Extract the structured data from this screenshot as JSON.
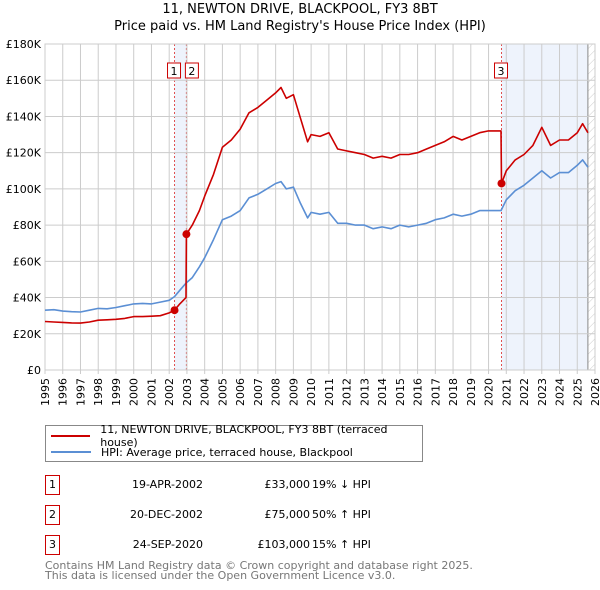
{
  "title_line1": "11, NEWTON DRIVE, BLACKPOOL, FY3 8BT",
  "title_line2": "Price paid vs. HM Land Registry's House Price Index (HPI)",
  "chart_data": {
    "type": "line",
    "title": "11, NEWTON DRIVE, BLACKPOOL, FY3 8BT — Price paid vs. HM Land Registry's House Price Index (HPI)",
    "xlabel": "",
    "ylabel": "",
    "xlim": [
      1995,
      2026
    ],
    "ylim": [
      0,
      180000
    ],
    "grid": true,
    "x_ticks": [
      "1995",
      "1996",
      "1997",
      "1998",
      "1999",
      "2000",
      "2001",
      "2002",
      "2003",
      "2004",
      "2005",
      "2006",
      "2007",
      "2008",
      "2009",
      "2010",
      "2011",
      "2012",
      "2013",
      "2014",
      "2015",
      "2016",
      "2017",
      "2018",
      "2019",
      "2020",
      "2021",
      "2022",
      "2023",
      "2024",
      "2025",
      "2026"
    ],
    "y_ticks": [
      {
        "v": 0,
        "label": "£0"
      },
      {
        "v": 20000,
        "label": "£20K"
      },
      {
        "v": 40000,
        "label": "£40K"
      },
      {
        "v": 60000,
        "label": "£60K"
      },
      {
        "v": 80000,
        "label": "£80K"
      },
      {
        "v": 100000,
        "label": "£100K"
      },
      {
        "v": 120000,
        "label": "£120K"
      },
      {
        "v": 140000,
        "label": "£140K"
      },
      {
        "v": 160000,
        "label": "£160K"
      },
      {
        "v": 180000,
        "label": "£180K"
      }
    ],
    "colors": {
      "property": "#cc0000",
      "hpi": "#5b8fd4",
      "shade": "#eef3fc",
      "marker_line": "#e05050"
    },
    "series": [
      {
        "name": "11, NEWTON DRIVE, BLACKPOOL, FY3 8BT (terraced house)",
        "color": "#cc0000",
        "x": [
          1995,
          1995.5,
          1996,
          1996.5,
          1997,
          1997.5,
          1998,
          1998.5,
          1999,
          1999.5,
          2000,
          2000.5,
          2001,
          2001.5,
          2002,
          2002.3,
          2002.6,
          2002.95,
          2002.97,
          2003.3,
          2003.7,
          2004,
          2004.5,
          2005,
          2005.5,
          2006,
          2006.5,
          2007,
          2007.5,
          2008,
          2008.3,
          2008.6,
          2009,
          2009.4,
          2009.8,
          2010,
          2010.5,
          2011,
          2011.5,
          2012,
          2012.5,
          2013,
          2013.5,
          2014,
          2014.5,
          2015,
          2015.5,
          2016,
          2016.5,
          2017,
          2017.5,
          2018,
          2018.5,
          2019,
          2019.5,
          2020,
          2020.7,
          2020.73,
          2021,
          2021.5,
          2022,
          2022.5,
          2023,
          2023.5,
          2024,
          2024.5,
          2025,
          2025.3,
          2025.6
        ],
        "y": [
          26800,
          26500,
          26300,
          26000,
          25900,
          26500,
          27500,
          27700,
          28000,
          28500,
          29500,
          29500,
          29700,
          30000,
          31500,
          33000,
          36500,
          40000,
          75000,
          80000,
          88000,
          96000,
          108000,
          123000,
          127000,
          133000,
          142000,
          145000,
          149000,
          153000,
          156000,
          150000,
          152000,
          139000,
          126000,
          130000,
          129000,
          131000,
          122000,
          121000,
          120000,
          119000,
          117000,
          118000,
          117000,
          119000,
          119000,
          120000,
          122000,
          124000,
          126000,
          129000,
          127000,
          129000,
          131000,
          132000,
          132000,
          103000,
          110000,
          116000,
          119000,
          124000,
          134000,
          124000,
          127000,
          127000,
          131000,
          136000,
          131000
        ]
      },
      {
        "name": "HPI: Average price, terraced house, Blackpool",
        "color": "#5b8fd4",
        "x": [
          1995,
          1995.5,
          1996,
          1996.5,
          1997,
          1997.5,
          1998,
          1998.5,
          1999,
          1999.5,
          2000,
          2000.5,
          2001,
          2001.5,
          2002,
          2002.3,
          2002.6,
          2002.95,
          2003.3,
          2003.7,
          2004,
          2004.5,
          2005,
          2005.5,
          2006,
          2006.5,
          2007,
          2007.5,
          2008,
          2008.3,
          2008.6,
          2009,
          2009.4,
          2009.8,
          2010,
          2010.5,
          2011,
          2011.5,
          2012,
          2012.5,
          2013,
          2013.5,
          2014,
          2014.5,
          2015,
          2015.5,
          2016,
          2016.5,
          2017,
          2017.5,
          2018,
          2018.5,
          2019,
          2019.5,
          2020,
          2020.7,
          2021,
          2021.5,
          2022,
          2022.5,
          2023,
          2023.5,
          2024,
          2024.5,
          2025,
          2025.3,
          2025.6
        ],
        "y": [
          33000,
          33300,
          32500,
          32200,
          32000,
          33000,
          34000,
          33800,
          34500,
          35500,
          36500,
          36800,
          36500,
          37500,
          38500,
          40500,
          44000,
          48000,
          51000,
          57000,
          62000,
          72000,
          83000,
          85000,
          88000,
          95000,
          97000,
          100000,
          103000,
          104000,
          100000,
          101000,
          92000,
          84000,
          87000,
          86000,
          87000,
          81000,
          81000,
          80000,
          80000,
          78000,
          79000,
          78000,
          80000,
          79000,
          80000,
          81000,
          83000,
          84000,
          86000,
          85000,
          86000,
          88000,
          88000,
          88000,
          94000,
          99000,
          102000,
          106000,
          110000,
          106000,
          109000,
          109000,
          113000,
          116000,
          112000
        ]
      }
    ],
    "sales": [
      {
        "id": "1",
        "x": 2002.3,
        "y": 33000
      },
      {
        "id": "2",
        "x": 2002.97,
        "y": 75000
      },
      {
        "id": "3",
        "x": 2020.73,
        "y": 103000
      }
    ],
    "shaded_ranges": [
      [
        2002.3,
        2002.97
      ],
      [
        2020.73,
        2025.6
      ]
    ],
    "forecast_hatch_from": 2025.6,
    "legend_placement": "bottom"
  },
  "legend": [
    {
      "label": "11, NEWTON DRIVE, BLACKPOOL, FY3 8BT (terraced house)",
      "color": "#cc0000"
    },
    {
      "label": "HPI: Average price, terraced house, Blackpool",
      "color": "#5b8fd4"
    }
  ],
  "table": [
    {
      "num": "1",
      "date": "19-APR-2002",
      "price": "£33,000",
      "hpi": "19% ↓ HPI"
    },
    {
      "num": "2",
      "date": "20-DEC-2002",
      "price": "£75,000",
      "hpi": "50% ↑ HPI"
    },
    {
      "num": "3",
      "date": "24-SEP-2020",
      "price": "£103,000",
      "hpi": "15% ↑ HPI"
    }
  ],
  "footer_line1": "Contains HM Land Registry data © Crown copyright and database right 2025.",
  "footer_line2": "This data is licensed under the Open Government Licence v3.0."
}
